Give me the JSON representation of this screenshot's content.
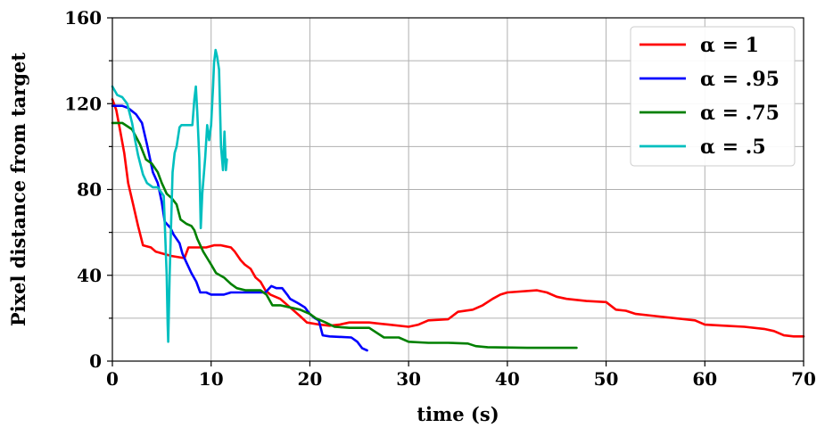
{
  "chart_data": {
    "type": "line",
    "xlabel": "time (s)",
    "ylabel": "Pixel distance from target",
    "xlim": [
      0,
      70
    ],
    "ylim": [
      0,
      160
    ],
    "xticks": [
      0,
      10,
      20,
      30,
      40,
      50,
      60,
      70
    ],
    "yticks": [
      0,
      40,
      80,
      120,
      160
    ],
    "yminor": [
      20,
      60,
      100,
      140
    ],
    "grid": true,
    "legend": "top-right",
    "series": [
      {
        "name": "α = 1",
        "color": "#ff0000",
        "points": [
          [
            0,
            122
          ],
          [
            0.4,
            117
          ],
          [
            0.8,
            107
          ],
          [
            1.2,
            97
          ],
          [
            1.6,
            83
          ],
          [
            2.1,
            73
          ],
          [
            2.6,
            63
          ],
          [
            3.1,
            54
          ],
          [
            3.9,
            53
          ],
          [
            4.4,
            51
          ],
          [
            5.2,
            50
          ],
          [
            6,
            49
          ],
          [
            7.3,
            48
          ],
          [
            7.7,
            53
          ],
          [
            8.5,
            53
          ],
          [
            9.5,
            53
          ],
          [
            10.3,
            54
          ],
          [
            11,
            54
          ],
          [
            11.5,
            53.5
          ],
          [
            12,
            53
          ],
          [
            12.4,
            51
          ],
          [
            13,
            47
          ],
          [
            13.4,
            45
          ],
          [
            14,
            43
          ],
          [
            14.5,
            39
          ],
          [
            15,
            37
          ],
          [
            15.5,
            33
          ],
          [
            16,
            31
          ],
          [
            17,
            29
          ],
          [
            18,
            25
          ],
          [
            19,
            21
          ],
          [
            19.7,
            18
          ],
          [
            21,
            17
          ],
          [
            22,
            16.5
          ],
          [
            23,
            17
          ],
          [
            24,
            18
          ],
          [
            26,
            18
          ],
          [
            27,
            17.5
          ],
          [
            28,
            17
          ],
          [
            30,
            16
          ],
          [
            31,
            17
          ],
          [
            32,
            19
          ],
          [
            34,
            19.5
          ],
          [
            35,
            23
          ],
          [
            36.5,
            24
          ],
          [
            37.5,
            26
          ],
          [
            38.5,
            29
          ],
          [
            39.3,
            31
          ],
          [
            40,
            32
          ],
          [
            43,
            33
          ],
          [
            44,
            32
          ],
          [
            45,
            30
          ],
          [
            46,
            29
          ],
          [
            48,
            28
          ],
          [
            50,
            27.5
          ],
          [
            51,
            24
          ],
          [
            52,
            23.5
          ],
          [
            53,
            22
          ],
          [
            55,
            21
          ],
          [
            57,
            20
          ],
          [
            59,
            19
          ],
          [
            60,
            17
          ],
          [
            62,
            16.5
          ],
          [
            64,
            16
          ],
          [
            66,
            15
          ],
          [
            67,
            14
          ],
          [
            68,
            12
          ],
          [
            69,
            11.5
          ],
          [
            70,
            11.5
          ]
        ]
      },
      {
        "name": "α = .95",
        "color": "#0000ff",
        "points": [
          [
            0,
            119
          ],
          [
            1,
            119
          ],
          [
            1.6,
            118
          ],
          [
            2.4,
            115
          ],
          [
            3,
            111
          ],
          [
            3.5,
            101
          ],
          [
            4.1,
            88
          ],
          [
            4.6,
            83
          ],
          [
            5,
            74
          ],
          [
            5.3,
            65
          ],
          [
            5.9,
            62
          ],
          [
            6.2,
            59
          ],
          [
            6.8,
            55
          ],
          [
            7.1,
            50
          ],
          [
            7.5,
            46
          ],
          [
            8,
            41
          ],
          [
            8.5,
            37
          ],
          [
            8.9,
            32
          ],
          [
            9.5,
            32
          ],
          [
            10,
            31
          ],
          [
            11.3,
            31
          ],
          [
            12,
            32
          ],
          [
            14,
            32
          ],
          [
            15.5,
            32
          ],
          [
            16.1,
            35
          ],
          [
            16.6,
            34
          ],
          [
            17.2,
            34
          ],
          [
            17.7,
            31
          ],
          [
            18,
            29
          ],
          [
            18.8,
            27
          ],
          [
            19.5,
            25
          ],
          [
            20,
            22
          ],
          [
            20.5,
            20
          ],
          [
            20.9,
            19
          ],
          [
            21.3,
            12
          ],
          [
            22,
            11.5
          ],
          [
            24.2,
            11
          ],
          [
            24.8,
            9
          ],
          [
            25.3,
            6
          ],
          [
            25.8,
            5
          ]
        ]
      },
      {
        "name": "α = .75",
        "color": "#008000",
        "points": [
          [
            0,
            111
          ],
          [
            1,
            111
          ],
          [
            2,
            108
          ],
          [
            2.8,
            101
          ],
          [
            3.4,
            94
          ],
          [
            4,
            92
          ],
          [
            4.6,
            88
          ],
          [
            5,
            83
          ],
          [
            5.5,
            78
          ],
          [
            6,
            76
          ],
          [
            6.5,
            73
          ],
          [
            6.9,
            66
          ],
          [
            7.5,
            64
          ],
          [
            8,
            63
          ],
          [
            8.3,
            61
          ],
          [
            8.6,
            57
          ],
          [
            9.2,
            51
          ],
          [
            9.6,
            48
          ],
          [
            10,
            45
          ],
          [
            10.5,
            41
          ],
          [
            11.3,
            39
          ],
          [
            12,
            36
          ],
          [
            12.6,
            34
          ],
          [
            13.5,
            33
          ],
          [
            15,
            33
          ],
          [
            15.6,
            31
          ],
          [
            16.2,
            26
          ],
          [
            17,
            26
          ],
          [
            18,
            25
          ],
          [
            19,
            24
          ],
          [
            20,
            22
          ],
          [
            20.6,
            20
          ],
          [
            21.6,
            18
          ],
          [
            22.5,
            16
          ],
          [
            24,
            15.5
          ],
          [
            26,
            15.5
          ],
          [
            27.5,
            11
          ],
          [
            29,
            11
          ],
          [
            30,
            9
          ],
          [
            32,
            8.5
          ],
          [
            34,
            8.5
          ],
          [
            36,
            8.2
          ],
          [
            36.8,
            7
          ],
          [
            38,
            6.5
          ],
          [
            42,
            6.2
          ],
          [
            47,
            6.2
          ]
        ]
      },
      {
        "name": "α = .5",
        "color": "#00bfbf",
        "points": [
          [
            0,
            128
          ],
          [
            0.5,
            124
          ],
          [
            1,
            123
          ],
          [
            1.5,
            120
          ],
          [
            2,
            111
          ],
          [
            2.3,
            103
          ],
          [
            2.6,
            96
          ],
          [
            3.1,
            87
          ],
          [
            3.5,
            83
          ],
          [
            4.1,
            81
          ],
          [
            4.6,
            81
          ],
          [
            5.2,
            77
          ],
          [
            5.5,
            40
          ],
          [
            5.6,
            17
          ],
          [
            5.65,
            9
          ],
          [
            5.8,
            40
          ],
          [
            6.1,
            88
          ],
          [
            6.3,
            97
          ],
          [
            6.5,
            100
          ],
          [
            6.8,
            109
          ],
          [
            7,
            110
          ],
          [
            7.6,
            110
          ],
          [
            8.1,
            110
          ],
          [
            8.3,
            122
          ],
          [
            8.45,
            128
          ],
          [
            8.6,
            116
          ],
          [
            8.8,
            95
          ],
          [
            8.95,
            62
          ],
          [
            9.1,
            78
          ],
          [
            9.4,
            95
          ],
          [
            9.6,
            110
          ],
          [
            9.8,
            103
          ],
          [
            10,
            110
          ],
          [
            10.2,
            128
          ],
          [
            10.3,
            139
          ],
          [
            10.45,
            145
          ],
          [
            10.6,
            142
          ],
          [
            10.8,
            136
          ],
          [
            11,
            100
          ],
          [
            11.2,
            89
          ],
          [
            11.35,
            107
          ],
          [
            11.5,
            89
          ],
          [
            11.6,
            94
          ]
        ]
      }
    ]
  }
}
